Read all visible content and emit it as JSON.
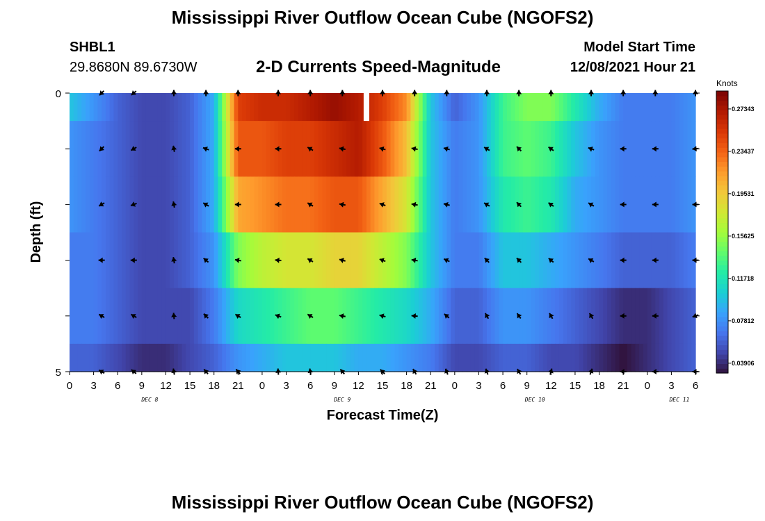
{
  "header": {
    "title": "Mississippi River Outflow Ocean Cube (NGOFS2)",
    "station_id": "SHBL1",
    "station_coords": "29.8680N  89.6730W",
    "subtitle": "2-D Currents Speed-Magnitude",
    "start_label": "Model Start Time",
    "start_value": "12/08/2021 Hour 21"
  },
  "footer": {
    "title": "Mississippi River Outflow Ocean Cube (NGOFS2)"
  },
  "colorbar": {
    "units": "Knots",
    "ticks": [
      "0.27343",
      "0.23437",
      "0.19531",
      "0.15625",
      "0.11718",
      "0.07812",
      "0.03906"
    ],
    "colors": [
      "#30123b",
      "#4145ab",
      "#4675ed",
      "#39a2fc",
      "#1bcfd4",
      "#24eca6",
      "#61fc6c",
      "#a4fc3b",
      "#d1e834",
      "#f3c63a",
      "#fe9b2d",
      "#f36315",
      "#d93806",
      "#b11901",
      "#7a0403"
    ]
  },
  "chart_data": {
    "type": "heatmap",
    "title": "2-D Currents Speed-Magnitude",
    "xlabel": "Forecast Time(Z)",
    "ylabel": "Depth (ft)",
    "x_tick_labels": [
      "0",
      "3",
      "6",
      "9",
      "12",
      "15",
      "18",
      "21",
      "0",
      "3",
      "6",
      "9",
      "12",
      "15",
      "18",
      "21",
      "0",
      "3",
      "6",
      "9",
      "12",
      "15",
      "18",
      "21",
      "0",
      "3",
      "6"
    ],
    "day_labels": [
      {
        "label": "DEC 8",
        "hour": 10
      },
      {
        "label": "DEC 9",
        "hour": 34
      },
      {
        "label": "DEC 10",
        "hour": 58
      },
      {
        "label": "DEC 11",
        "hour": 76
      }
    ],
    "xlim": [
      0,
      78
    ],
    "ylim": [
      0,
      5
    ],
    "y_tick_labels": [
      "0",
      "5"
    ],
    "depth_levels_ft": [
      0,
      1,
      2,
      3,
      4,
      5
    ],
    "speed_range_knots": [
      0.03,
      0.29
    ],
    "hours": [
      0,
      3,
      6,
      9,
      12,
      15,
      18,
      21,
      24,
      27,
      30,
      33,
      36,
      39,
      42,
      45,
      48,
      51,
      54,
      57,
      60,
      63,
      66,
      69,
      72,
      75,
      78
    ],
    "speed_knots": [
      [
        0.1,
        0.08,
        0.06,
        0.05,
        0.05,
        0.06,
        0.09,
        0.25,
        0.26,
        0.26,
        0.27,
        0.28,
        0.27,
        0.25,
        0.22,
        0.1,
        0.06,
        0.08,
        0.13,
        0.15,
        0.15,
        0.12,
        0.09,
        0.07,
        0.07,
        0.07,
        0.08
      ],
      [
        0.08,
        0.07,
        0.06,
        0.05,
        0.05,
        0.06,
        0.09,
        0.24,
        0.24,
        0.25,
        0.25,
        0.26,
        0.27,
        0.24,
        0.2,
        0.1,
        0.07,
        0.08,
        0.13,
        0.14,
        0.13,
        0.1,
        0.08,
        0.07,
        0.07,
        0.07,
        0.08
      ],
      [
        0.08,
        0.07,
        0.06,
        0.05,
        0.05,
        0.06,
        0.09,
        0.21,
        0.22,
        0.23,
        0.23,
        0.24,
        0.24,
        0.21,
        0.18,
        0.1,
        0.07,
        0.08,
        0.12,
        0.13,
        0.12,
        0.09,
        0.08,
        0.07,
        0.07,
        0.07,
        0.08
      ],
      [
        0.07,
        0.07,
        0.06,
        0.05,
        0.05,
        0.06,
        0.08,
        0.15,
        0.17,
        0.18,
        0.18,
        0.19,
        0.19,
        0.17,
        0.15,
        0.1,
        0.07,
        0.07,
        0.1,
        0.1,
        0.09,
        0.08,
        0.07,
        0.06,
        0.06,
        0.06,
        0.07
      ],
      [
        0.07,
        0.07,
        0.06,
        0.05,
        0.05,
        0.05,
        0.07,
        0.11,
        0.12,
        0.13,
        0.14,
        0.14,
        0.13,
        0.12,
        0.11,
        0.09,
        0.06,
        0.06,
        0.08,
        0.08,
        0.07,
        0.06,
        0.05,
        0.04,
        0.04,
        0.05,
        0.06
      ],
      [
        0.06,
        0.06,
        0.05,
        0.04,
        0.04,
        0.05,
        0.06,
        0.08,
        0.09,
        0.1,
        0.1,
        0.1,
        0.09,
        0.09,
        0.08,
        0.07,
        0.05,
        0.05,
        0.06,
        0.06,
        0.05,
        0.05,
        0.04,
        0.03,
        0.04,
        0.05,
        0.06
      ]
    ],
    "missing": [
      {
        "hour": 37,
        "depth_row": 0
      }
    ],
    "arrow_hours": [
      4,
      8,
      13,
      17,
      21,
      26,
      30,
      34,
      39,
      43,
      47,
      52,
      56,
      60,
      65,
      69,
      73,
      78
    ],
    "current_direction_deg": [
      [
        225,
        230,
        0,
        0,
        0,
        0,
        0,
        0,
        0,
        0,
        0,
        0,
        0,
        0,
        0,
        0,
        0,
        0
      ],
      [
        225,
        240,
        350,
        290,
        270,
        270,
        300,
        280,
        285,
        280,
        285,
        300,
        315,
        305,
        290,
        270,
        270,
        265
      ],
      [
        240,
        250,
        350,
        300,
        270,
        270,
        300,
        280,
        290,
        280,
        285,
        300,
        315,
        305,
        300,
        270,
        270,
        270
      ],
      [
        270,
        270,
        350,
        310,
        280,
        275,
        300,
        285,
        290,
        280,
        295,
        315,
        315,
        310,
        300,
        270,
        270,
        270
      ],
      [
        300,
        300,
        355,
        315,
        300,
        290,
        300,
        280,
        285,
        275,
        310,
        330,
        325,
        330,
        330,
        270,
        270,
        250
      ],
      [
        300,
        310,
        350,
        320,
        320,
        355,
        350,
        320,
        315,
        330,
        340,
        340,
        330,
        15,
        20,
        270,
        270,
        270
      ]
    ]
  }
}
